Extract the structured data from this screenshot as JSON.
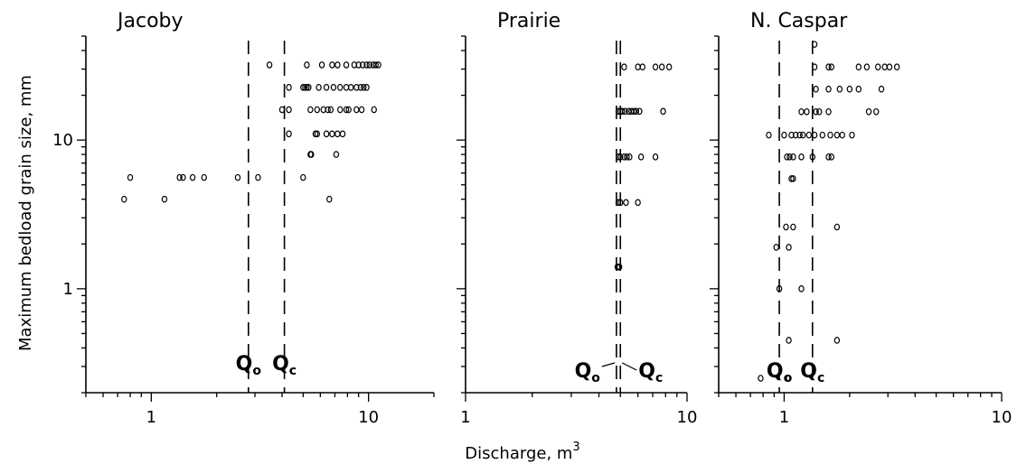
{
  "figure": {
    "y_axis_label": "Maximum bedload grain size, mm",
    "x_axis_label_main": "Discharge, m",
    "x_axis_label_sup": "3"
  },
  "chart_data": [
    {
      "type": "scatter",
      "title": "Jacoby",
      "xscale": "log",
      "yscale": "log",
      "xlim": [
        0.5,
        20
      ],
      "ylim": [
        0.2,
        50
      ],
      "x_ticks": [
        1,
        10
      ],
      "x_tick_labels": [
        "1",
        "10"
      ],
      "y_ticks": [
        1,
        10
      ],
      "y_tick_labels": [
        "1",
        "10"
      ],
      "qo": 2.8,
      "qc": 4.1,
      "q_labels": {
        "o": "Q",
        "o_sub": "o",
        "c": "Q",
        "c_sub": "c"
      },
      "points": [
        [
          0.75,
          4.0
        ],
        [
          1.15,
          4.0
        ],
        [
          6.6,
          4.0
        ],
        [
          0.8,
          5.6
        ],
        [
          1.35,
          5.6
        ],
        [
          1.4,
          5.6
        ],
        [
          1.55,
          5.6
        ],
        [
          1.75,
          5.6
        ],
        [
          2.5,
          5.6
        ],
        [
          3.1,
          5.6
        ],
        [
          5.0,
          5.6
        ],
        [
          5.4,
          8.0
        ],
        [
          5.45,
          8.0
        ],
        [
          7.1,
          8.0
        ],
        [
          4.3,
          11.0
        ],
        [
          5.7,
          11.0
        ],
        [
          5.8,
          11.0
        ],
        [
          6.4,
          11.0
        ],
        [
          6.8,
          11.0
        ],
        [
          7.2,
          11.0
        ],
        [
          7.6,
          11.0
        ],
        [
          4.0,
          16.0
        ],
        [
          4.3,
          16.0
        ],
        [
          5.4,
          16.0
        ],
        [
          5.8,
          16.0
        ],
        [
          6.2,
          16.0
        ],
        [
          6.5,
          16.0
        ],
        [
          6.7,
          16.0
        ],
        [
          7.4,
          16.0
        ],
        [
          7.9,
          16.0
        ],
        [
          8.1,
          16.0
        ],
        [
          8.8,
          16.0
        ],
        [
          9.3,
          16.0
        ],
        [
          10.6,
          16.0
        ],
        [
          4.3,
          22.6
        ],
        [
          5.0,
          22.6
        ],
        [
          5.1,
          22.6
        ],
        [
          5.2,
          22.6
        ],
        [
          5.3,
          22.6
        ],
        [
          5.9,
          22.6
        ],
        [
          6.4,
          22.6
        ],
        [
          6.9,
          22.6
        ],
        [
          7.4,
          22.6
        ],
        [
          7.9,
          22.6
        ],
        [
          8.3,
          22.6
        ],
        [
          8.8,
          22.6
        ],
        [
          9.2,
          22.6
        ],
        [
          9.5,
          22.6
        ],
        [
          9.8,
          22.6
        ],
        [
          3.5,
          32.0
        ],
        [
          5.2,
          32.0
        ],
        [
          6.1,
          32.0
        ],
        [
          6.8,
          32.0
        ],
        [
          7.2,
          32.0
        ],
        [
          7.9,
          32.0
        ],
        [
          8.6,
          32.0
        ],
        [
          9.0,
          32.0
        ],
        [
          9.4,
          32.0
        ],
        [
          9.8,
          32.0
        ],
        [
          10.1,
          32.0
        ],
        [
          10.5,
          32.0
        ],
        [
          10.8,
          32.0
        ],
        [
          11.1,
          32.0
        ]
      ]
    },
    {
      "type": "scatter",
      "title": "Prairie",
      "xscale": "log",
      "yscale": "log",
      "xlim": [
        1,
        10
      ],
      "ylim": [
        0.2,
        50
      ],
      "x_ticks": [
        1,
        10
      ],
      "x_tick_labels": [
        "1",
        "10"
      ],
      "qo": 4.8,
      "qc": 5.0,
      "q_labels": {
        "o": "Q",
        "o_sub": "o",
        "c": "Q",
        "c_sub": "c"
      },
      "points": [
        [
          4.85,
          1.4
        ],
        [
          4.95,
          1.4
        ],
        [
          4.9,
          3.8
        ],
        [
          5.0,
          3.8
        ],
        [
          5.3,
          3.8
        ],
        [
          6.0,
          3.8
        ],
        [
          4.9,
          7.7
        ],
        [
          5.0,
          7.7
        ],
        [
          5.2,
          7.7
        ],
        [
          5.35,
          7.7
        ],
        [
          5.5,
          7.7
        ],
        [
          6.2,
          7.7
        ],
        [
          7.2,
          7.7
        ],
        [
          4.9,
          15.6
        ],
        [
          5.0,
          15.6
        ],
        [
          5.1,
          15.6
        ],
        [
          5.25,
          15.6
        ],
        [
          5.45,
          15.6
        ],
        [
          5.6,
          15.6
        ],
        [
          5.75,
          15.6
        ],
        [
          5.9,
          15.6
        ],
        [
          6.1,
          15.6
        ],
        [
          7.8,
          15.6
        ],
        [
          5.2,
          31.0
        ],
        [
          6.0,
          31.0
        ],
        [
          6.3,
          31.0
        ],
        [
          7.2,
          31.0
        ],
        [
          7.7,
          31.0
        ],
        [
          8.3,
          31.0
        ]
      ]
    },
    {
      "type": "scatter",
      "title": "N. Caspar",
      "xscale": "log",
      "yscale": "log",
      "xlim": [
        0.5,
        10
      ],
      "ylim": [
        0.2,
        50
      ],
      "x_ticks": [
        1,
        10
      ],
      "x_tick_labels": [
        "1",
        "10"
      ],
      "qo": 0.95,
      "qc": 1.35,
      "q_labels": {
        "o": "Q",
        "o_sub": "o",
        "c": "Q",
        "c_sub": "c"
      },
      "points": [
        [
          0.78,
          0.25
        ],
        [
          1.05,
          0.25
        ],
        [
          1.05,
          0.45
        ],
        [
          1.75,
          0.45
        ],
        [
          0.95,
          1.0
        ],
        [
          1.2,
          1.0
        ],
        [
          0.92,
          1.9
        ],
        [
          1.05,
          1.9
        ],
        [
          1.02,
          2.6
        ],
        [
          1.1,
          2.6
        ],
        [
          1.75,
          2.6
        ],
        [
          1.08,
          5.5
        ],
        [
          1.1,
          5.5
        ],
        [
          1.03,
          7.7
        ],
        [
          1.06,
          7.7
        ],
        [
          1.1,
          7.7
        ],
        [
          1.2,
          7.7
        ],
        [
          1.35,
          7.7
        ],
        [
          1.6,
          7.7
        ],
        [
          1.65,
          7.7
        ],
        [
          0.85,
          10.8
        ],
        [
          1.0,
          10.8
        ],
        [
          1.08,
          10.8
        ],
        [
          1.13,
          10.8
        ],
        [
          1.18,
          10.8
        ],
        [
          1.22,
          10.8
        ],
        [
          1.3,
          10.8
        ],
        [
          1.38,
          10.8
        ],
        [
          1.5,
          10.8
        ],
        [
          1.63,
          10.8
        ],
        [
          1.75,
          10.8
        ],
        [
          1.85,
          10.8
        ],
        [
          2.05,
          10.8
        ],
        [
          1.2,
          15.5
        ],
        [
          1.27,
          15.5
        ],
        [
          1.4,
          15.5
        ],
        [
          1.45,
          15.5
        ],
        [
          1.6,
          15.5
        ],
        [
          2.45,
          15.5
        ],
        [
          2.65,
          15.5
        ],
        [
          1.4,
          22.0
        ],
        [
          1.6,
          22.0
        ],
        [
          1.8,
          22.0
        ],
        [
          2.0,
          22.0
        ],
        [
          2.2,
          22.0
        ],
        [
          2.8,
          22.0
        ],
        [
          1.38,
          31.0
        ],
        [
          1.6,
          31.0
        ],
        [
          1.65,
          31.0
        ],
        [
          2.2,
          31.0
        ],
        [
          2.4,
          31.0
        ],
        [
          2.7,
          31.0
        ],
        [
          2.9,
          31.0
        ],
        [
          3.05,
          31.0
        ],
        [
          3.3,
          31.0
        ],
        [
          1.38,
          44.0
        ]
      ]
    }
  ]
}
